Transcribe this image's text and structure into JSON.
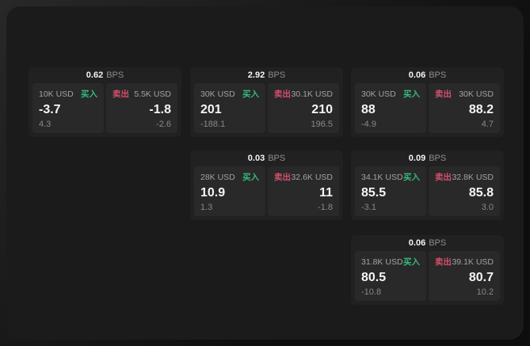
{
  "labels": {
    "buy": "买入",
    "sell": "卖出",
    "bps": "BPS"
  },
  "colors": {
    "buy_green": "#35b97c",
    "sell_red": "#d44f6b",
    "panel_bg": "#1b1b1b",
    "card_bg": "#212121",
    "pane_bg": "#292929"
  },
  "cards": [
    {
      "bps": "0.62",
      "buy": {
        "amount": "10K USD",
        "value": "-3.7",
        "delta": "4.3"
      },
      "sell": {
        "amount": "5.5K USD",
        "value": "-1.8",
        "delta": "-2.6"
      }
    },
    {
      "bps": "2.92",
      "buy": {
        "amount": "30K USD",
        "value": "201",
        "delta": "-188.1"
      },
      "sell": {
        "amount": "30.1K USD",
        "value": "210",
        "delta": "196.5"
      }
    },
    {
      "bps": "0.06",
      "buy": {
        "amount": "30K USD",
        "value": "88",
        "delta": "-4.9"
      },
      "sell": {
        "amount": "30K USD",
        "value": "88.2",
        "delta": "4.7"
      }
    },
    {
      "bps": "0.03",
      "buy": {
        "amount": "28K USD",
        "value": "10.9",
        "delta": "1.3"
      },
      "sell": {
        "amount": "32.6K USD",
        "value": "11",
        "delta": "-1.8"
      }
    },
    {
      "bps": "0.09",
      "buy": {
        "amount": "34.1K USD",
        "value": "85.5",
        "delta": "-3.1"
      },
      "sell": {
        "amount": "32.8K USD",
        "value": "85.8",
        "delta": "3.0"
      }
    },
    {
      "bps": "0.06",
      "buy": {
        "amount": "31.8K USD",
        "value": "80.5",
        "delta": "-10.8"
      },
      "sell": {
        "amount": "39.1K USD",
        "value": "80.7",
        "delta": "10.2"
      }
    }
  ]
}
